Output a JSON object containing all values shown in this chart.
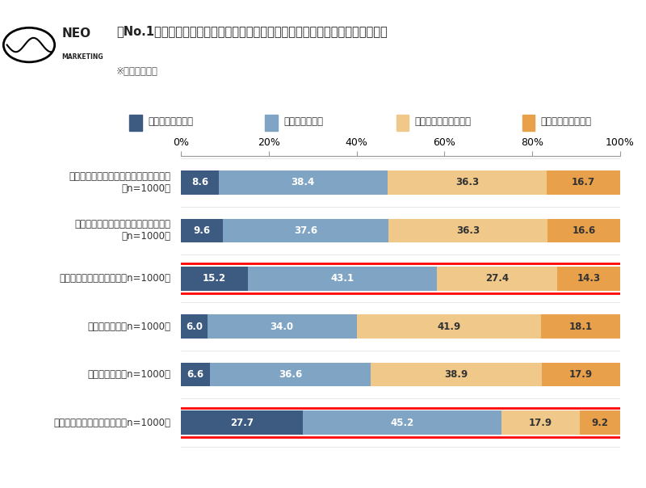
{
  "title": "「No.1」「トップ」などのフレーズが記載された商品・サービスの広告への印象",
  "subtitle": "※回答者：全員",
  "categories": [
    "商品・サービスを購入・使用してみたい\n（n=1000）",
    "商品・サービスを詳細に調べてみたい\n（n=1000）",
    "利用者の意見を知りたい（n=1000）",
    "信頼ができる（n=1000）",
    "安心ができる（n=1000）",
    "本当にそうなのかなと思う（n=1000）"
  ],
  "legend_labels": [
    "とてもあてはまる",
    "ややあてはまる",
    "あまりあてはまらない",
    "全くあてはまらない"
  ],
  "colors": [
    "#3d5a80",
    "#7fa4c4",
    "#f0c98a",
    "#e8a04a"
  ],
  "data": [
    [
      8.6,
      38.4,
      36.3,
      16.7
    ],
    [
      9.6,
      37.6,
      36.3,
      16.6
    ],
    [
      15.2,
      43.1,
      27.4,
      14.3
    ],
    [
      6.0,
      34.0,
      41.9,
      18.1
    ],
    [
      6.6,
      36.6,
      38.9,
      17.9
    ],
    [
      27.7,
      45.2,
      17.9,
      9.2
    ]
  ],
  "highlighted_rows": [
    2,
    5
  ],
  "highlight_color": "red",
  "background_color": "#ffffff",
  "bar_height": 0.5,
  "xlim": [
    0,
    100
  ],
  "xticks": [
    0,
    20,
    40,
    60,
    80,
    100
  ],
  "xtick_labels": [
    "0%",
    "20%",
    "40%",
    "60%",
    "80%",
    "100%"
  ],
  "logo_text": "NEO\nMARKETING",
  "text_colors_inside": [
    "white",
    "white",
    "#333333",
    "#333333"
  ]
}
